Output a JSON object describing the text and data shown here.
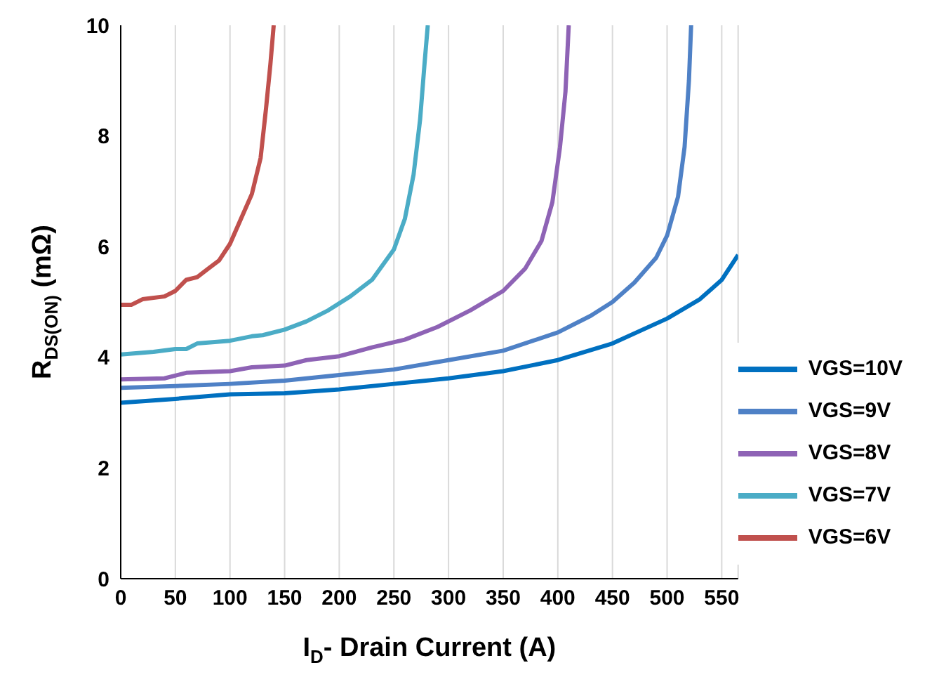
{
  "chart_data": {
    "type": "line",
    "xlabel": "I$_{D}$- Drain Current (A)",
    "ylabel": "R$_{DS(ON)}$ (mΩ)",
    "xlim": [
      0,
      565
    ],
    "xticks": [
      0,
      50,
      100,
      150,
      200,
      250,
      300,
      350,
      400,
      450,
      500,
      550
    ],
    "ylim": [
      0,
      10
    ],
    "yticks": [
      0,
      2,
      4,
      6,
      8,
      10
    ],
    "grid": "x",
    "legend": "bottom right",
    "marker": "none",
    "line_style": "solid",
    "series": [
      {
        "name": "VGS=10V",
        "color": "#0070c0",
        "x": [
          0,
          50,
          100,
          150,
          200,
          250,
          300,
          350,
          400,
          450,
          500,
          530,
          550,
          565
        ],
        "values": [
          3.18,
          3.25,
          3.33,
          3.35,
          3.42,
          3.52,
          3.62,
          3.75,
          3.95,
          4.25,
          4.7,
          5.05,
          5.4,
          5.85
        ]
      },
      {
        "name": "VGS=9V",
        "color": "#4f81c6",
        "x": [
          0,
          50,
          100,
          150,
          200,
          250,
          300,
          350,
          400,
          430,
          450,
          470,
          490,
          500,
          510,
          516,
          520,
          522
        ],
        "values": [
          3.45,
          3.48,
          3.52,
          3.58,
          3.68,
          3.78,
          3.95,
          4.12,
          4.45,
          4.75,
          5.0,
          5.35,
          5.8,
          6.2,
          6.9,
          7.8,
          9,
          10
        ]
      },
      {
        "name": "VGS=8V",
        "color": "#8e63b5",
        "x": [
          0,
          40,
          60,
          100,
          120,
          150,
          170,
          200,
          230,
          260,
          290,
          320,
          350,
          370,
          385,
          395,
          402,
          407,
          410
        ],
        "values": [
          3.6,
          3.62,
          3.72,
          3.75,
          3.82,
          3.85,
          3.95,
          4.02,
          4.18,
          4.32,
          4.55,
          4.85,
          5.2,
          5.6,
          6.1,
          6.8,
          7.8,
          8.8,
          10
        ]
      },
      {
        "name": "VGS=7V",
        "color": "#4bacc6",
        "x": [
          0,
          30,
          50,
          60,
          70,
          100,
          120,
          130,
          150,
          170,
          190,
          210,
          230,
          250,
          260,
          268,
          274,
          278,
          281
        ],
        "values": [
          4.05,
          4.1,
          4.15,
          4.15,
          4.25,
          4.3,
          4.38,
          4.4,
          4.5,
          4.65,
          4.85,
          5.1,
          5.4,
          5.95,
          6.5,
          7.3,
          8.3,
          9.3,
          10
        ]
      },
      {
        "name": "VGS=6V",
        "color": "#c0504d",
        "x": [
          0,
          10,
          20,
          40,
          50,
          60,
          70,
          80,
          90,
          100,
          110,
          120,
          128,
          133,
          137,
          140
        ],
        "values": [
          4.95,
          4.95,
          5.05,
          5.1,
          5.2,
          5.4,
          5.45,
          5.6,
          5.75,
          6.05,
          6.5,
          6.95,
          7.6,
          8.5,
          9.3,
          10
        ]
      }
    ]
  }
}
